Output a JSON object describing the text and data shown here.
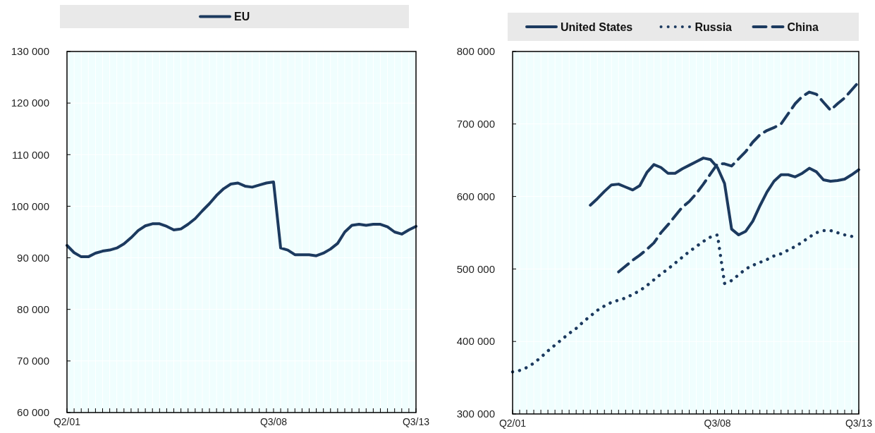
{
  "chart_data": [
    {
      "type": "line",
      "legend": "top",
      "grid": true,
      "categories": [
        "Q2/01",
        null,
        null,
        null,
        null,
        null,
        null,
        null,
        null,
        null,
        null,
        null,
        null,
        null,
        null,
        null,
        null,
        null,
        null,
        null,
        null,
        null,
        null,
        null,
        null,
        null,
        null,
        null,
        null,
        "Q3/08",
        null,
        null,
        null,
        null,
        null,
        null,
        null,
        null,
        null,
        null,
        null,
        null,
        null,
        null,
        null,
        null,
        null,
        null,
        null,
        "Q3/13"
      ],
      "ylim": [
        60000,
        130000
      ],
      "yticks": [
        {
          "value": 60000,
          "label": "60 000"
        },
        {
          "value": 70000,
          "label": "70 000"
        },
        {
          "value": 80000,
          "label": "80 000"
        },
        {
          "value": 90000,
          "label": "90 000"
        },
        {
          "value": 100000,
          "label": "100 000"
        },
        {
          "value": 110000,
          "label": "110 000"
        },
        {
          "value": 120000,
          "label": "120 000"
        },
        {
          "value": 130000,
          "label": "130 000"
        }
      ],
      "series": [
        {
          "name": "EU",
          "color": "#1c3a5f",
          "line_style": "solid",
          "values": [
            92400,
            91000,
            90200,
            90200,
            90900,
            91300,
            91500,
            91900,
            92700,
            93900,
            95300,
            96200,
            96600,
            96600,
            96100,
            95400,
            95600,
            96500,
            97600,
            99100,
            100500,
            102100,
            103400,
            104300,
            104500,
            103900,
            103700,
            104100,
            104500,
            104700,
            91900,
            91500,
            90600,
            90600,
            90600,
            90400,
            90900,
            91700,
            92800,
            95000,
            96300,
            96500,
            96300,
            96500,
            96500,
            96000,
            95000,
            94600,
            95400,
            96100
          ]
        }
      ]
    },
    {
      "type": "line",
      "legend": "top",
      "grid": true,
      "categories": [
        "Q2/01",
        null,
        null,
        null,
        null,
        null,
        null,
        null,
        null,
        null,
        null,
        null,
        null,
        null,
        null,
        null,
        null,
        null,
        null,
        null,
        null,
        null,
        null,
        null,
        null,
        null,
        null,
        null,
        null,
        "Q3/08",
        null,
        null,
        null,
        null,
        null,
        null,
        null,
        null,
        null,
        null,
        null,
        null,
        null,
        null,
        null,
        null,
        null,
        null,
        null,
        "Q3/13"
      ],
      "ylim": [
        300000,
        800000
      ],
      "yticks": [
        {
          "value": 300000,
          "label": "300 000"
        },
        {
          "value": 400000,
          "label": "400 000"
        },
        {
          "value": 500000,
          "label": "500 000"
        },
        {
          "value": 600000,
          "label": "600 000"
        },
        {
          "value": 700000,
          "label": "700 000"
        },
        {
          "value": 800000,
          "label": "800 000"
        }
      ],
      "series": [
        {
          "name": "United States",
          "color": "#1c3a5f",
          "line_style": "solid",
          "values": [
            null,
            null,
            null,
            null,
            null,
            null,
            null,
            null,
            null,
            null,
            null,
            588000,
            597000,
            607000,
            616000,
            617000,
            613000,
            609000,
            615000,
            633000,
            644000,
            640000,
            632000,
            632000,
            638000,
            643000,
            648000,
            653000,
            651000,
            640000,
            618000,
            555000,
            547000,
            552000,
            566000,
            587000,
            606000,
            621000,
            630000,
            630000,
            627000,
            632000,
            639000,
            634000,
            623000,
            621000,
            622000,
            624000,
            630000,
            637000
          ]
        },
        {
          "name": "Russia",
          "color": "#1c3a5f",
          "line_style": "dotted",
          "values": [
            358000,
            360000,
            364000,
            370000,
            378000,
            387000,
            395000,
            403000,
            411000,
            418000,
            427000,
            435000,
            443000,
            449000,
            454000,
            457000,
            460000,
            465000,
            470000,
            477000,
            485000,
            493000,
            500000,
            508000,
            516000,
            524000,
            531000,
            538000,
            544000,
            547000,
            480000,
            484000,
            492000,
            500000,
            505000,
            509000,
            513000,
            518000,
            521000,
            526000,
            531000,
            537000,
            544000,
            550000,
            553000,
            553000,
            550000,
            547000,
            545000,
            null
          ]
        },
        {
          "name": "China",
          "color": "#1c3a5f",
          "line_style": "dashed",
          "values": [
            null,
            null,
            null,
            null,
            null,
            null,
            null,
            null,
            null,
            null,
            null,
            null,
            null,
            null,
            null,
            496000,
            504000,
            512000,
            519000,
            527000,
            536000,
            550000,
            561000,
            573000,
            585000,
            593000,
            604000,
            617000,
            631000,
            645000,
            645000,
            642000,
            652000,
            662000,
            675000,
            685000,
            691000,
            695000,
            700000,
            714000,
            728000,
            738000,
            744000,
            741000,
            730000,
            719000,
            728000,
            736000,
            747000,
            758000
          ]
        }
      ]
    }
  ]
}
